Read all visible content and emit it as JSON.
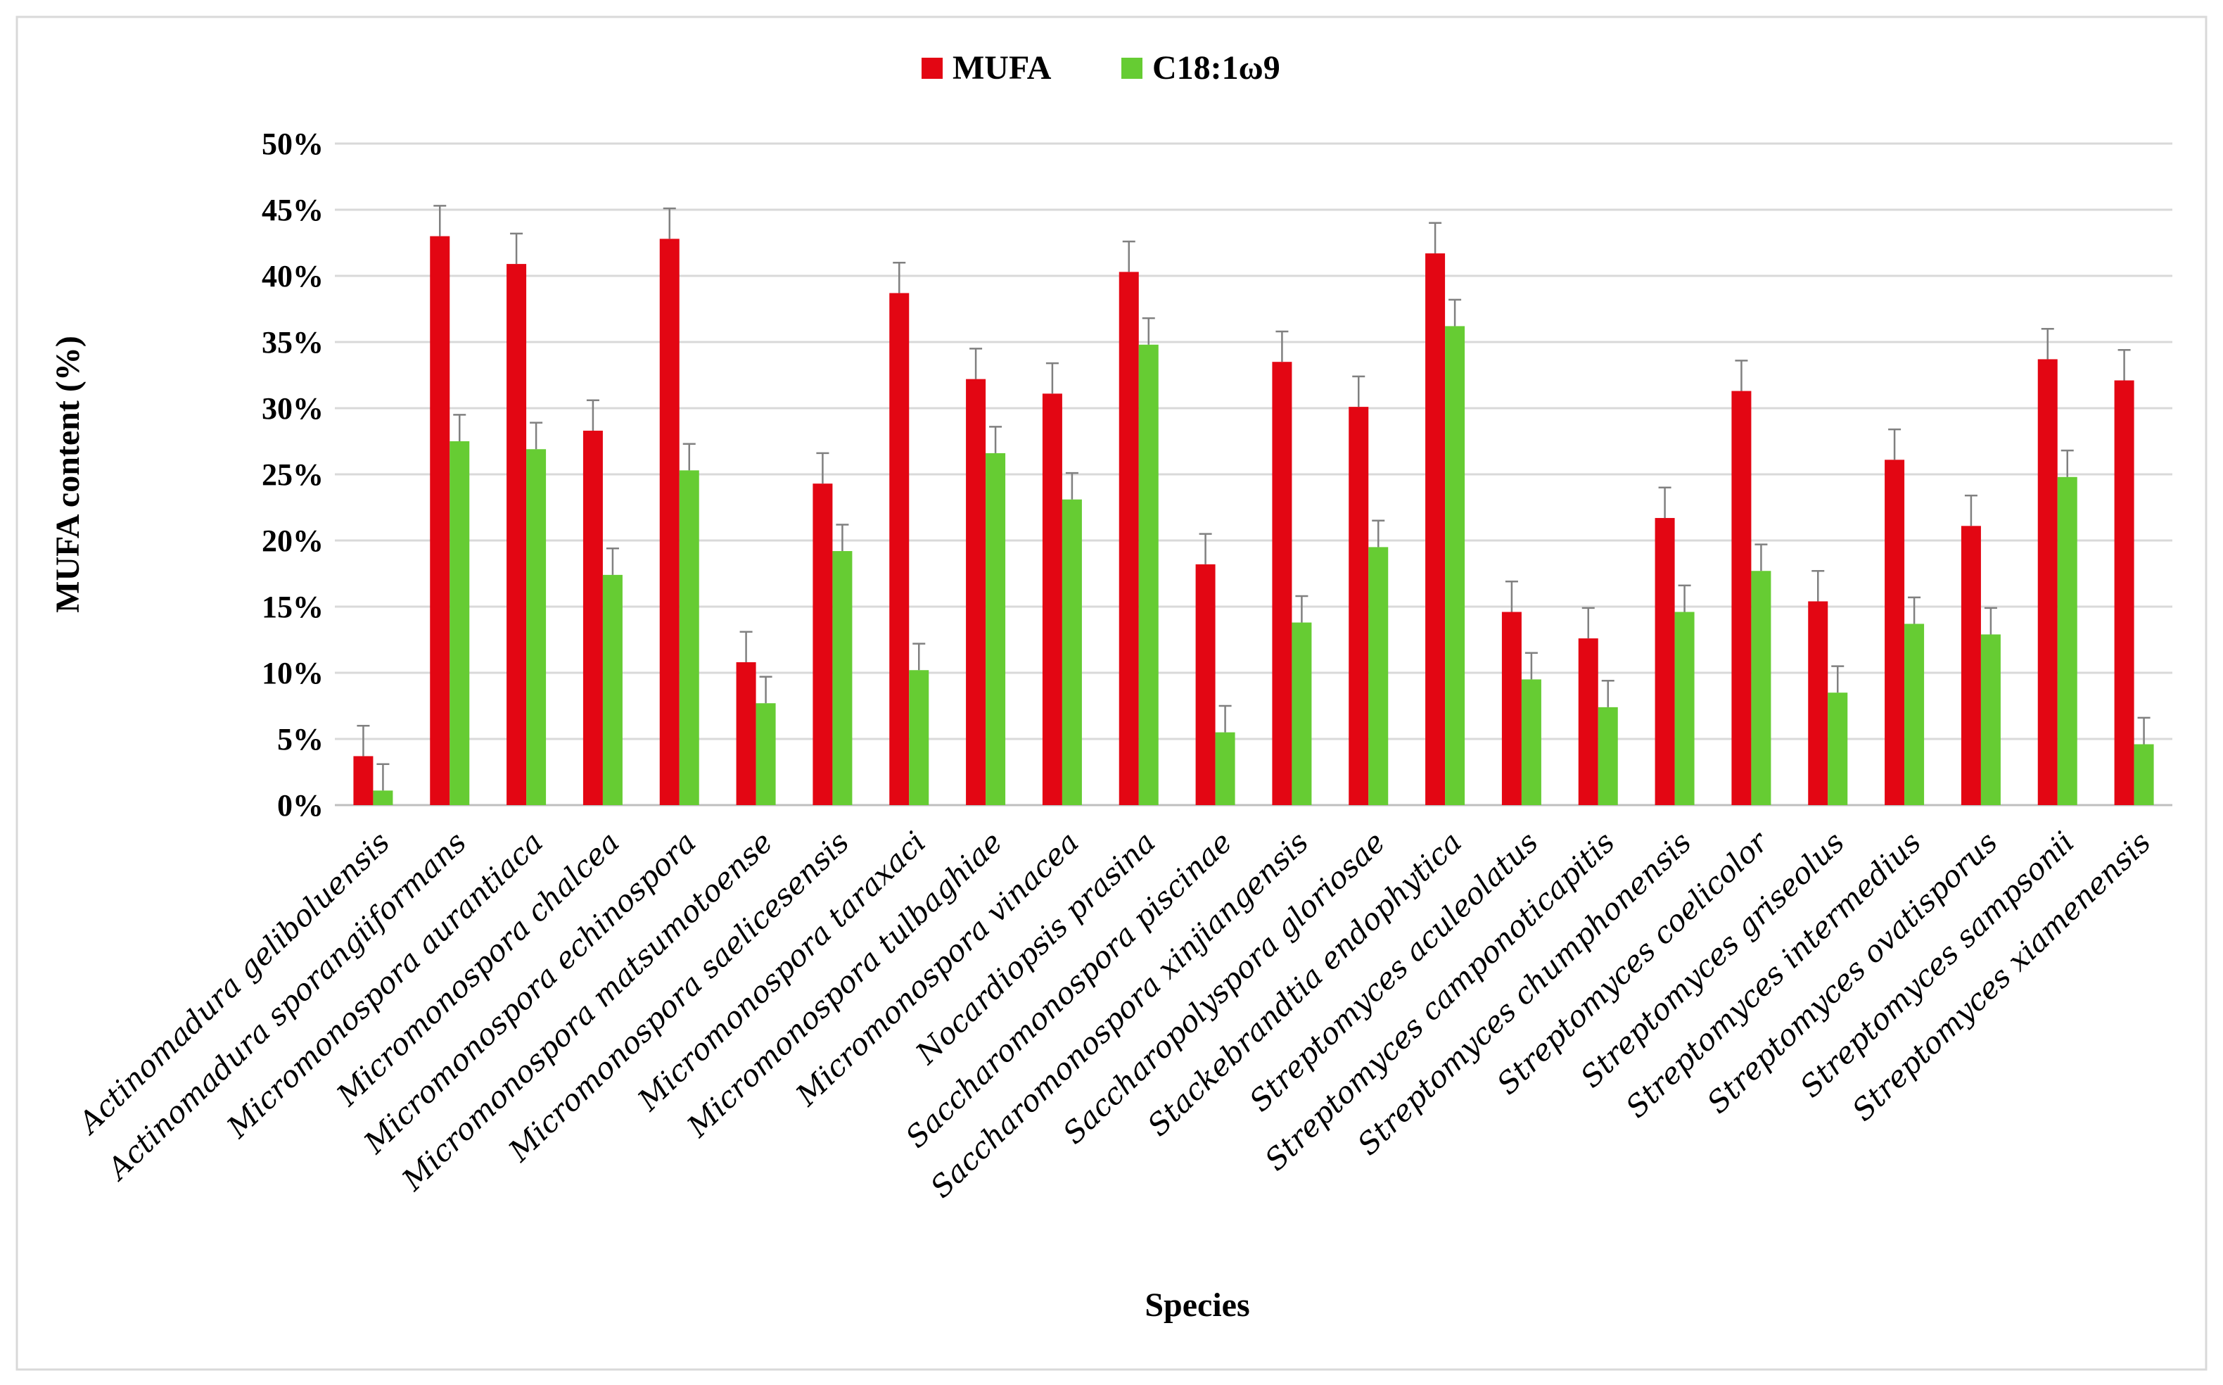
{
  "chart_data": {
    "type": "bar",
    "title": "",
    "xlabel": "Species",
    "ylabel": "MUFA content (%)",
    "ylim": [
      0,
      50
    ],
    "ytick_step": 5,
    "ytick_suffix": "%",
    "grid": true,
    "legend_position": "top-center",
    "categories": [
      "Actinomadura geliboluensis",
      "Actinomadura sporangiiformans",
      "Micromonospora aurantiaca",
      "Micromonospora chalcea",
      "Micromonospora echinospora",
      "Micromonospora matsumotoense",
      "Micromonospora saelicesensis",
      "Micromonospora taraxaci",
      "Micromonospora tulbaghiae",
      "Micromonospora vinacea",
      "Nocardiopsis prasina",
      "Saccharomonospora piscinae",
      "Saccharomonospora xinjiangensis",
      "Saccharopolyspora gloriosae",
      "Stackebrandtia endophytica",
      "Streptomyces aculeolatus",
      "Streptomyces camponoticapitis",
      "Streptomyces chumphonensis",
      "Streptomyces coelicolor",
      "Streptomyces griseolus",
      "Streptomyces intermedius",
      "Streptomyces ovatisporus",
      "Streptomyces sampsonii",
      "Streptomyces xiamenensis"
    ],
    "series": [
      {
        "name": "MUFA",
        "color": "#e30613",
        "values": [
          3.7,
          43.0,
          40.9,
          28.3,
          42.8,
          10.8,
          24.3,
          38.7,
          32.2,
          31.1,
          40.3,
          18.2,
          33.5,
          30.1,
          41.7,
          14.6,
          12.6,
          21.7,
          31.3,
          15.4,
          26.1,
          21.1,
          33.7,
          32.1
        ],
        "errors": [
          2.3,
          2.3,
          2.3,
          2.3,
          2.3,
          2.3,
          2.3,
          2.3,
          2.3,
          2.3,
          2.3,
          2.3,
          2.3,
          2.3,
          2.3,
          2.3,
          2.3,
          2.3,
          2.3,
          2.3,
          2.3,
          2.3,
          2.3,
          2.3
        ]
      },
      {
        "name": "C18:1ω9",
        "color": "#66cc33",
        "values": [
          1.1,
          27.5,
          26.9,
          17.4,
          25.3,
          7.7,
          19.2,
          10.2,
          26.6,
          23.1,
          34.8,
          5.5,
          13.8,
          19.5,
          36.2,
          9.5,
          7.4,
          14.6,
          17.7,
          8.5,
          13.7,
          12.9,
          24.8,
          4.6
        ],
        "errors": [
          2.0,
          2.0,
          2.0,
          2.0,
          2.0,
          2.0,
          2.0,
          2.0,
          2.0,
          2.0,
          2.0,
          2.0,
          2.0,
          2.0,
          2.0,
          2.0,
          2.0,
          2.0,
          2.0,
          2.0,
          2.0,
          2.0,
          2.0,
          2.0
        ]
      }
    ]
  }
}
